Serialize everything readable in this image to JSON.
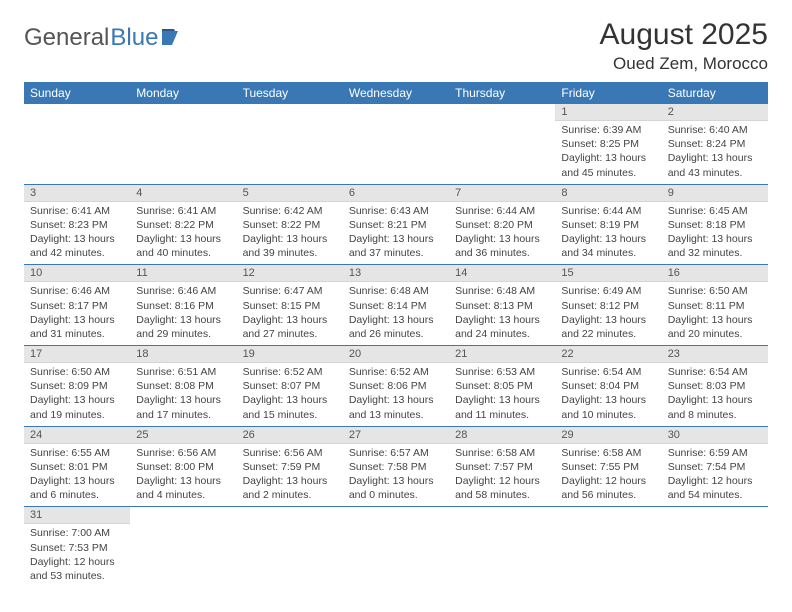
{
  "logo": {
    "text1": "General",
    "text2": "Blue"
  },
  "title": "August 2025",
  "location": "Oued Zem, Morocco",
  "colors": {
    "header_bg": "#3a78b5",
    "header_text": "#ffffff",
    "daynum_bg": "#e5e5e5",
    "border": "#3a78b5"
  },
  "weekdays": [
    "Sunday",
    "Monday",
    "Tuesday",
    "Wednesday",
    "Thursday",
    "Friday",
    "Saturday"
  ],
  "weeks": [
    [
      null,
      null,
      null,
      null,
      null,
      {
        "n": "1",
        "sr": "Sunrise: 6:39 AM",
        "ss": "Sunset: 8:25 PM",
        "dl1": "Daylight: 13 hours",
        "dl2": "and 45 minutes."
      },
      {
        "n": "2",
        "sr": "Sunrise: 6:40 AM",
        "ss": "Sunset: 8:24 PM",
        "dl1": "Daylight: 13 hours",
        "dl2": "and 43 minutes."
      }
    ],
    [
      {
        "n": "3",
        "sr": "Sunrise: 6:41 AM",
        "ss": "Sunset: 8:23 PM",
        "dl1": "Daylight: 13 hours",
        "dl2": "and 42 minutes."
      },
      {
        "n": "4",
        "sr": "Sunrise: 6:41 AM",
        "ss": "Sunset: 8:22 PM",
        "dl1": "Daylight: 13 hours",
        "dl2": "and 40 minutes."
      },
      {
        "n": "5",
        "sr": "Sunrise: 6:42 AM",
        "ss": "Sunset: 8:22 PM",
        "dl1": "Daylight: 13 hours",
        "dl2": "and 39 minutes."
      },
      {
        "n": "6",
        "sr": "Sunrise: 6:43 AM",
        "ss": "Sunset: 8:21 PM",
        "dl1": "Daylight: 13 hours",
        "dl2": "and 37 minutes."
      },
      {
        "n": "7",
        "sr": "Sunrise: 6:44 AM",
        "ss": "Sunset: 8:20 PM",
        "dl1": "Daylight: 13 hours",
        "dl2": "and 36 minutes."
      },
      {
        "n": "8",
        "sr": "Sunrise: 6:44 AM",
        "ss": "Sunset: 8:19 PM",
        "dl1": "Daylight: 13 hours",
        "dl2": "and 34 minutes."
      },
      {
        "n": "9",
        "sr": "Sunrise: 6:45 AM",
        "ss": "Sunset: 8:18 PM",
        "dl1": "Daylight: 13 hours",
        "dl2": "and 32 minutes."
      }
    ],
    [
      {
        "n": "10",
        "sr": "Sunrise: 6:46 AM",
        "ss": "Sunset: 8:17 PM",
        "dl1": "Daylight: 13 hours",
        "dl2": "and 31 minutes."
      },
      {
        "n": "11",
        "sr": "Sunrise: 6:46 AM",
        "ss": "Sunset: 8:16 PM",
        "dl1": "Daylight: 13 hours",
        "dl2": "and 29 minutes."
      },
      {
        "n": "12",
        "sr": "Sunrise: 6:47 AM",
        "ss": "Sunset: 8:15 PM",
        "dl1": "Daylight: 13 hours",
        "dl2": "and 27 minutes."
      },
      {
        "n": "13",
        "sr": "Sunrise: 6:48 AM",
        "ss": "Sunset: 8:14 PM",
        "dl1": "Daylight: 13 hours",
        "dl2": "and 26 minutes."
      },
      {
        "n": "14",
        "sr": "Sunrise: 6:48 AM",
        "ss": "Sunset: 8:13 PM",
        "dl1": "Daylight: 13 hours",
        "dl2": "and 24 minutes."
      },
      {
        "n": "15",
        "sr": "Sunrise: 6:49 AM",
        "ss": "Sunset: 8:12 PM",
        "dl1": "Daylight: 13 hours",
        "dl2": "and 22 minutes."
      },
      {
        "n": "16",
        "sr": "Sunrise: 6:50 AM",
        "ss": "Sunset: 8:11 PM",
        "dl1": "Daylight: 13 hours",
        "dl2": "and 20 minutes."
      }
    ],
    [
      {
        "n": "17",
        "sr": "Sunrise: 6:50 AM",
        "ss": "Sunset: 8:09 PM",
        "dl1": "Daylight: 13 hours",
        "dl2": "and 19 minutes."
      },
      {
        "n": "18",
        "sr": "Sunrise: 6:51 AM",
        "ss": "Sunset: 8:08 PM",
        "dl1": "Daylight: 13 hours",
        "dl2": "and 17 minutes."
      },
      {
        "n": "19",
        "sr": "Sunrise: 6:52 AM",
        "ss": "Sunset: 8:07 PM",
        "dl1": "Daylight: 13 hours",
        "dl2": "and 15 minutes."
      },
      {
        "n": "20",
        "sr": "Sunrise: 6:52 AM",
        "ss": "Sunset: 8:06 PM",
        "dl1": "Daylight: 13 hours",
        "dl2": "and 13 minutes."
      },
      {
        "n": "21",
        "sr": "Sunrise: 6:53 AM",
        "ss": "Sunset: 8:05 PM",
        "dl1": "Daylight: 13 hours",
        "dl2": "and 11 minutes."
      },
      {
        "n": "22",
        "sr": "Sunrise: 6:54 AM",
        "ss": "Sunset: 8:04 PM",
        "dl1": "Daylight: 13 hours",
        "dl2": "and 10 minutes."
      },
      {
        "n": "23",
        "sr": "Sunrise: 6:54 AM",
        "ss": "Sunset: 8:03 PM",
        "dl1": "Daylight: 13 hours",
        "dl2": "and 8 minutes."
      }
    ],
    [
      {
        "n": "24",
        "sr": "Sunrise: 6:55 AM",
        "ss": "Sunset: 8:01 PM",
        "dl1": "Daylight: 13 hours",
        "dl2": "and 6 minutes."
      },
      {
        "n": "25",
        "sr": "Sunrise: 6:56 AM",
        "ss": "Sunset: 8:00 PM",
        "dl1": "Daylight: 13 hours",
        "dl2": "and 4 minutes."
      },
      {
        "n": "26",
        "sr": "Sunrise: 6:56 AM",
        "ss": "Sunset: 7:59 PM",
        "dl1": "Daylight: 13 hours",
        "dl2": "and 2 minutes."
      },
      {
        "n": "27",
        "sr": "Sunrise: 6:57 AM",
        "ss": "Sunset: 7:58 PM",
        "dl1": "Daylight: 13 hours",
        "dl2": "and 0 minutes."
      },
      {
        "n": "28",
        "sr": "Sunrise: 6:58 AM",
        "ss": "Sunset: 7:57 PM",
        "dl1": "Daylight: 12 hours",
        "dl2": "and 58 minutes."
      },
      {
        "n": "29",
        "sr": "Sunrise: 6:58 AM",
        "ss": "Sunset: 7:55 PM",
        "dl1": "Daylight: 12 hours",
        "dl2": "and 56 minutes."
      },
      {
        "n": "30",
        "sr": "Sunrise: 6:59 AM",
        "ss": "Sunset: 7:54 PM",
        "dl1": "Daylight: 12 hours",
        "dl2": "and 54 minutes."
      }
    ],
    [
      {
        "n": "31",
        "sr": "Sunrise: 7:00 AM",
        "ss": "Sunset: 7:53 PM",
        "dl1": "Daylight: 12 hours",
        "dl2": "and 53 minutes."
      },
      null,
      null,
      null,
      null,
      null,
      null
    ]
  ]
}
